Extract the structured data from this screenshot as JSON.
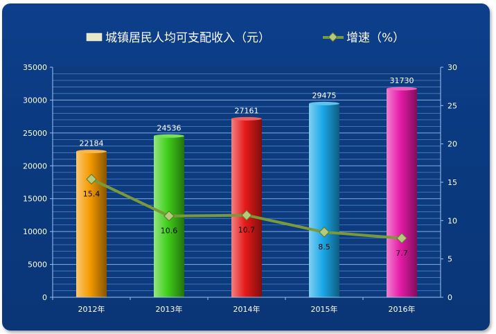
{
  "chart_data": {
    "type": "bar",
    "categories": [
      "2012年",
      "2013年",
      "2014年",
      "2015年",
      "2016年"
    ],
    "series": [
      {
        "name": "城镇居民人均可支配收入（元）",
        "type": "bar",
        "axis": "left",
        "values": [
          22184,
          24536,
          27161,
          29475,
          31730
        ],
        "colors": [
          "#f59a00",
          "#3fcf1a",
          "#e61a1a",
          "#1aa8e8",
          "#e61aa8"
        ]
      },
      {
        "name": "增速（%）",
        "type": "line",
        "axis": "right",
        "values": [
          15.4,
          10.6,
          10.7,
          8.5,
          7.7
        ],
        "color": "#7a9a3a",
        "marker_color": "#b7c97a"
      }
    ],
    "y_left": {
      "range": [
        0,
        35000
      ],
      "ticks": [
        "0",
        "5000",
        "10000",
        "15000",
        "20000",
        "25000",
        "30000",
        "35000"
      ]
    },
    "y_right": {
      "range": [
        0,
        30
      ],
      "ticks": [
        "0",
        "5",
        "10",
        "15",
        "20",
        "25",
        "30"
      ]
    },
    "legend_position": "top",
    "grid": true
  }
}
